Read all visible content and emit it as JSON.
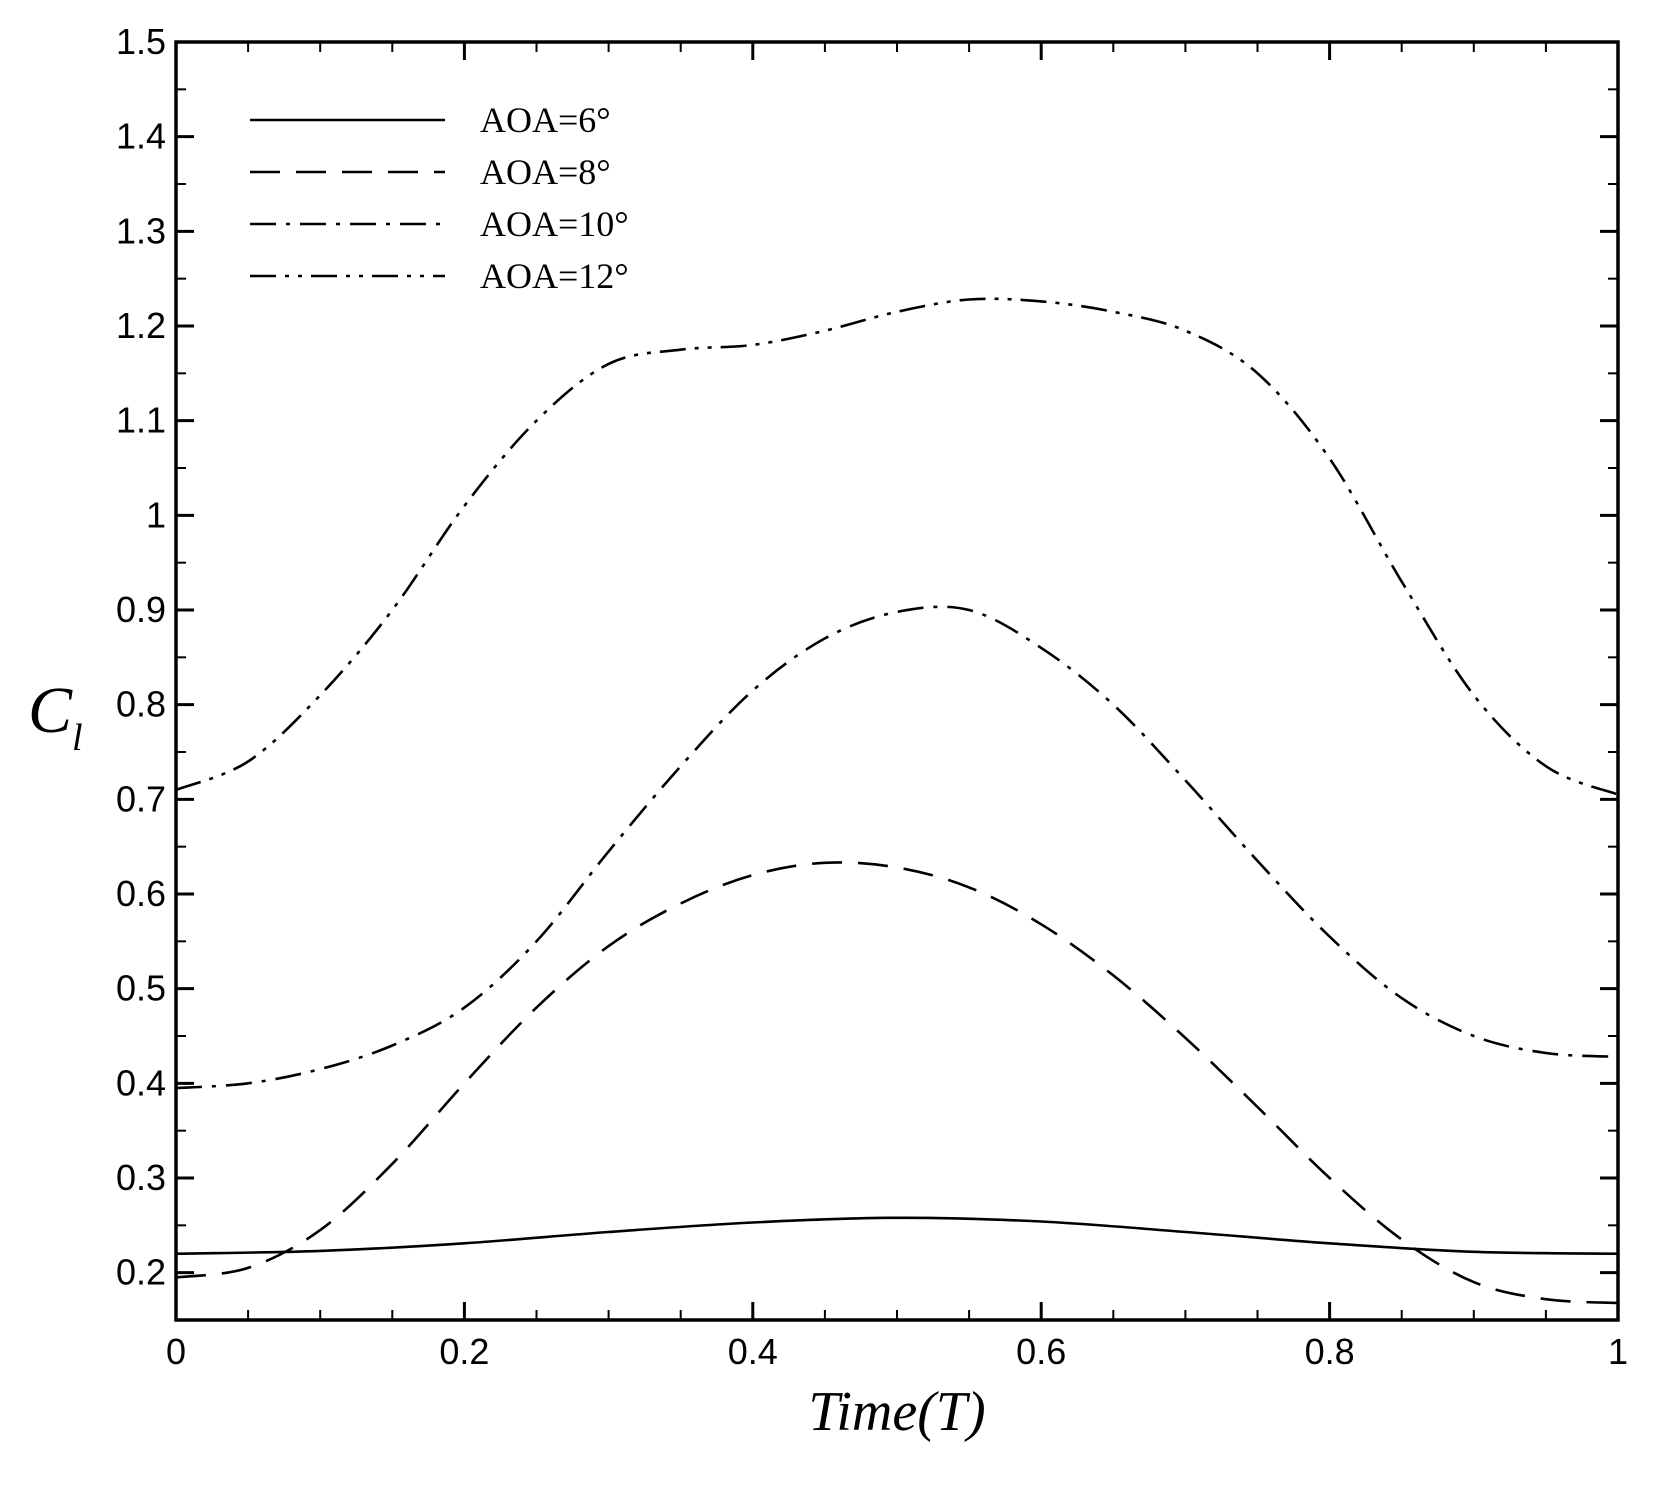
{
  "chart_data": {
    "type": "line",
    "title": "",
    "xlabel": "Time(T)",
    "ylabel_main": "C",
    "ylabel_sub": "l",
    "xlim": [
      0,
      1
    ],
    "ylim": [
      0.15,
      1.5
    ],
    "xticks": [
      0,
      0.2,
      0.4,
      0.6,
      0.8,
      1
    ],
    "xtick_labels": [
      "0",
      "0.2",
      "0.4",
      "0.6",
      "0.8",
      "1"
    ],
    "yticks": [
      0.2,
      0.3,
      0.4,
      0.5,
      0.6,
      0.7,
      0.8,
      0.9,
      1,
      1.1,
      1.2,
      1.3,
      1.4,
      1.5
    ],
    "ytick_labels": [
      "0.2",
      "0.3",
      "0.4",
      "0.5",
      "0.6",
      "0.7",
      "0.8",
      "0.9",
      "1",
      "1.1",
      "1.2",
      "1.3",
      "1.4",
      "1.5"
    ],
    "grid": false,
    "legend_position": "top-left",
    "series": [
      {
        "name": "AOA=6°",
        "dash": "solid",
        "x": [
          0,
          0.1,
          0.2,
          0.3,
          0.4,
          0.5,
          0.6,
          0.7,
          0.8,
          0.9,
          1.0
        ],
        "y": [
          0.22,
          0.223,
          0.231,
          0.243,
          0.253,
          0.258,
          0.254,
          0.243,
          0.231,
          0.222,
          0.22
        ]
      },
      {
        "name": "AOA=8°",
        "dash": "dashed",
        "x": [
          0,
          0.05,
          0.1,
          0.15,
          0.2,
          0.25,
          0.3,
          0.35,
          0.4,
          0.45,
          0.5,
          0.55,
          0.6,
          0.65,
          0.7,
          0.75,
          0.8,
          0.85,
          0.9,
          0.95,
          1.0
        ],
        "y": [
          0.195,
          0.205,
          0.245,
          0.315,
          0.4,
          0.48,
          0.545,
          0.59,
          0.62,
          0.633,
          0.628,
          0.607,
          0.568,
          0.514,
          0.448,
          0.375,
          0.3,
          0.235,
          0.19,
          0.172,
          0.168
        ]
      },
      {
        "name": "AOA=10°",
        "dash": "dash-dot",
        "x": [
          0,
          0.05,
          0.1,
          0.15,
          0.2,
          0.25,
          0.3,
          0.35,
          0.4,
          0.45,
          0.5,
          0.55,
          0.6,
          0.65,
          0.7,
          0.75,
          0.8,
          0.85,
          0.9,
          0.95,
          1.0
        ],
        "y": [
          0.395,
          0.4,
          0.415,
          0.44,
          0.48,
          0.55,
          0.645,
          0.735,
          0.815,
          0.87,
          0.898,
          0.9,
          0.86,
          0.8,
          0.72,
          0.635,
          0.555,
          0.49,
          0.45,
          0.432,
          0.428
        ]
      },
      {
        "name": "AOA=12°",
        "dash": "dash-dot-dot",
        "x": [
          0,
          0.05,
          0.1,
          0.15,
          0.2,
          0.25,
          0.3,
          0.35,
          0.4,
          0.45,
          0.5,
          0.55,
          0.6,
          0.65,
          0.7,
          0.75,
          0.8,
          0.85,
          0.9,
          0.95,
          1.0
        ],
        "y": [
          0.71,
          0.74,
          0.81,
          0.9,
          1.01,
          1.1,
          1.16,
          1.175,
          1.18,
          1.195,
          1.215,
          1.228,
          1.226,
          1.215,
          1.195,
          1.15,
          1.06,
          0.93,
          0.81,
          0.735,
          0.705
        ]
      }
    ]
  }
}
